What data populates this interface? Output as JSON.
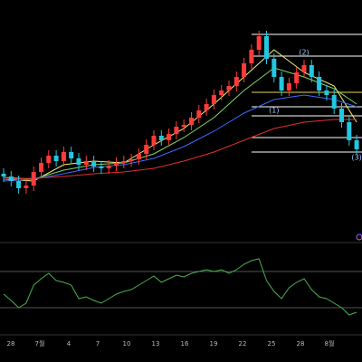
{
  "chart_data": {
    "type": "candlestick",
    "ylim": [
      0,
      270
    ],
    "up_color": "#ff3b3b",
    "down_color": "#22c7e0",
    "open": [
      78,
      75,
      70,
      62,
      65,
      80,
      90,
      98,
      92,
      102,
      95,
      88,
      92,
      86,
      84,
      87,
      90,
      92,
      94,
      100,
      110,
      120,
      115,
      122,
      130,
      132,
      140,
      148,
      155,
      165,
      170,
      175,
      185,
      200,
      215,
      230,
      205,
      185,
      170,
      178,
      190,
      198,
      185,
      170,
      165,
      150,
      135,
      115
    ],
    "high": [
      84,
      81,
      76,
      71,
      86,
      96,
      104,
      104,
      108,
      108,
      101,
      98,
      98,
      92,
      93,
      96,
      98,
      100,
      106,
      116,
      126,
      126,
      128,
      136,
      138,
      146,
      154,
      161,
      171,
      176,
      181,
      191,
      206,
      221,
      236,
      236,
      211,
      191,
      184,
      196,
      204,
      204,
      191,
      176,
      171,
      156,
      141,
      121
    ],
    "low": [
      69,
      64,
      56,
      56,
      59,
      74,
      84,
      86,
      86,
      89,
      82,
      82,
      80,
      78,
      78,
      81,
      84,
      86,
      88,
      94,
      104,
      109,
      109,
      116,
      124,
      126,
      134,
      142,
      149,
      159,
      164,
      169,
      179,
      194,
      209,
      199,
      179,
      164,
      164,
      172,
      184,
      179,
      164,
      159,
      144,
      129,
      109,
      99
    ],
    "close": [
      75,
      70,
      62,
      65,
      80,
      90,
      98,
      92,
      102,
      95,
      88,
      92,
      86,
      84,
      87,
      90,
      92,
      94,
      100,
      110,
      120,
      115,
      122,
      130,
      132,
      140,
      148,
      155,
      165,
      170,
      175,
      185,
      200,
      215,
      230,
      205,
      185,
      170,
      178,
      190,
      198,
      185,
      170,
      165,
      150,
      135,
      115,
      105
    ],
    "moving_averages": [
      {
        "color": "#f5f07a",
        "x": [
          0,
          4,
          8,
          12,
          16,
          20,
          24,
          28,
          32,
          36,
          40,
          44,
          47
        ],
        "values": [
          72,
          70,
          88,
          92,
          90,
          110,
          128,
          155,
          185,
          215,
          190,
          175,
          135
        ]
      },
      {
        "color": "#7fd86a",
        "x": [
          0,
          4,
          8,
          12,
          16,
          20,
          24,
          28,
          32,
          36,
          40,
          44,
          47
        ],
        "values": [
          74,
          72,
          82,
          88,
          90,
          100,
          118,
          140,
          170,
          195,
          185,
          172,
          155
        ]
      },
      {
        "color": "#3d6bff",
        "x": [
          0,
          4,
          8,
          12,
          16,
          20,
          24,
          28,
          32,
          36,
          40,
          44,
          47
        ],
        "values": [
          70,
          72,
          78,
          85,
          88,
          95,
          108,
          125,
          145,
          160,
          165,
          160,
          152
        ]
      },
      {
        "color": "#e03030",
        "x": [
          0,
          4,
          8,
          12,
          16,
          20,
          24,
          28,
          32,
          36,
          40,
          44,
          47
        ],
        "values": [
          72,
          73,
          75,
          78,
          80,
          84,
          92,
          102,
          115,
          128,
          135,
          138,
          138
        ]
      }
    ],
    "fib_levels": [
      232,
      208,
      168,
      152,
      142,
      118,
      102
    ],
    "fib_colors": [
      "#ffffff",
      "#ffffff",
      "#e8d84a",
      "#ffffff",
      "#ffffff",
      "#ffffff",
      "#ffffff"
    ],
    "wave_labels": [
      {
        "label": "(1)",
        "index": 36,
        "value": 148
      },
      {
        "label": "(2)",
        "index": 40,
        "value": 212
      },
      {
        "label": "(3)",
        "index": 47,
        "value": 96
      }
    ],
    "oscillator": {
      "color": "#4caf50",
      "ylim": [
        10,
        90
      ],
      "levels": [
        70,
        30
      ],
      "values": [
        45,
        38,
        30,
        35,
        55,
        62,
        68,
        60,
        58,
        55,
        40,
        42,
        38,
        35,
        40,
        45,
        48,
        50,
        55,
        60,
        65,
        58,
        62,
        66,
        64,
        68,
        70,
        72,
        70,
        72,
        68,
        72,
        78,
        82,
        84,
        60,
        48,
        40,
        52,
        58,
        62,
        50,
        42,
        40,
        35,
        30,
        22,
        25
      ]
    },
    "xlabels": [
      "28",
      "7월",
      "4",
      "7",
      "10",
      "13",
      "16",
      "19",
      "22",
      "25",
      "28",
      "8월"
    ]
  }
}
